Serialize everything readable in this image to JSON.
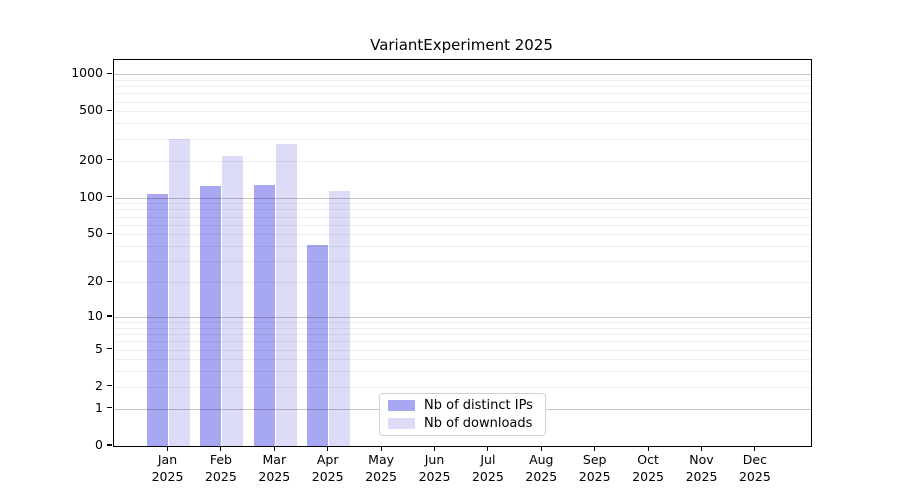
{
  "title": "VariantExperiment 2025",
  "legend": {
    "items": [
      {
        "label": "Nb of distinct IPs",
        "color": "#a7a7f2"
      },
      {
        "label": "Nb of downloads",
        "color": "#dcdcf8"
      }
    ]
  },
  "chart_data": {
    "type": "bar",
    "title": "VariantExperiment 2025",
    "categories": [
      "Jan",
      "Feb",
      "Mar",
      "Apr",
      "May",
      "Jun",
      "Jul",
      "Aug",
      "Sep",
      "Oct",
      "Nov",
      "Dec"
    ],
    "year": "2025",
    "series": [
      {
        "name": "Nb of distinct IPs",
        "color": "#a7a7f2",
        "values": [
          107,
          125,
          127,
          41,
          0,
          0,
          0,
          0,
          0,
          0,
          0,
          0
        ]
      },
      {
        "name": "Nb of downloads",
        "color": "#dcdcf8",
        "values": [
          300,
          218,
          272,
          114,
          0,
          0,
          0,
          0,
          0,
          0,
          0,
          0
        ]
      }
    ],
    "yscale": "log1p",
    "ylim": [
      0,
      1300
    ],
    "y_ticks": [
      0,
      1,
      2,
      5,
      10,
      20,
      50,
      100,
      200,
      500,
      1000
    ],
    "grid": {
      "major_values": [
        1,
        10,
        100,
        1000
      ],
      "minor_values": [
        2,
        3,
        4,
        5,
        6,
        7,
        8,
        9,
        20,
        30,
        40,
        50,
        60,
        70,
        80,
        90,
        200,
        300,
        400,
        500,
        600,
        700,
        800,
        900
      ],
      "major_color": "#c6c6c6",
      "minor_color": "#ededed"
    },
    "legend_position": "bottom-center"
  }
}
